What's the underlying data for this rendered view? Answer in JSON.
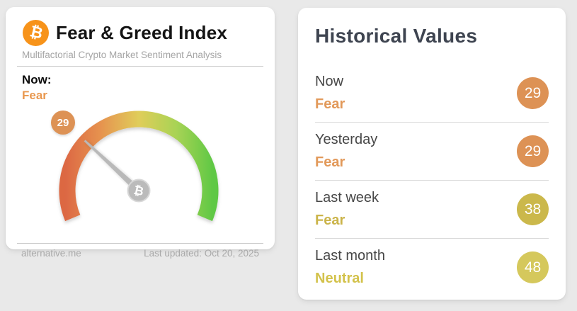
{
  "page": {
    "background_color": "#e9e9e9"
  },
  "left_card": {
    "bitcoin_symbol": "₿",
    "bitcoin_color": "#f7931a",
    "title": "Fear & Greed Index",
    "subtitle": "Multifactorial Crypto Market Sentiment Analysis",
    "now_label": "Now:",
    "now_classification": "Fear",
    "now_classification_color": "#e9984f",
    "footer": {
      "source": "alternative.me",
      "last_updated": "Last updated: Oct 20, 2025"
    }
  },
  "gauge": {
    "value": 29,
    "min": 0,
    "max": 100,
    "sweep_degrees": 225,
    "badge_color": "#dd9255",
    "needle_color": "#b9b9b9",
    "hub_symbol": "₿",
    "colors": {
      "red": "#dc6743",
      "orange": "#e6924f",
      "yellow": "#e0cd5a",
      "yellow_green": "#a9d355",
      "green": "#5fc844"
    }
  },
  "right_card": {
    "title": "Historical Values",
    "rows": [
      {
        "label": "Now",
        "classification": "Fear",
        "value": "29",
        "color": "#dd9255",
        "text_color": "#e2995a"
      },
      {
        "label": "Yesterday",
        "classification": "Fear",
        "value": "29",
        "color": "#dd9255",
        "text_color": "#e2995a"
      },
      {
        "label": "Last week",
        "classification": "Fear",
        "value": "38",
        "color": "#cbb84b",
        "text_color": "#cbb44a"
      },
      {
        "label": "Last month",
        "classification": "Neutral",
        "value": "48",
        "color": "#d5c85c",
        "text_color": "#d3c24b"
      }
    ]
  }
}
